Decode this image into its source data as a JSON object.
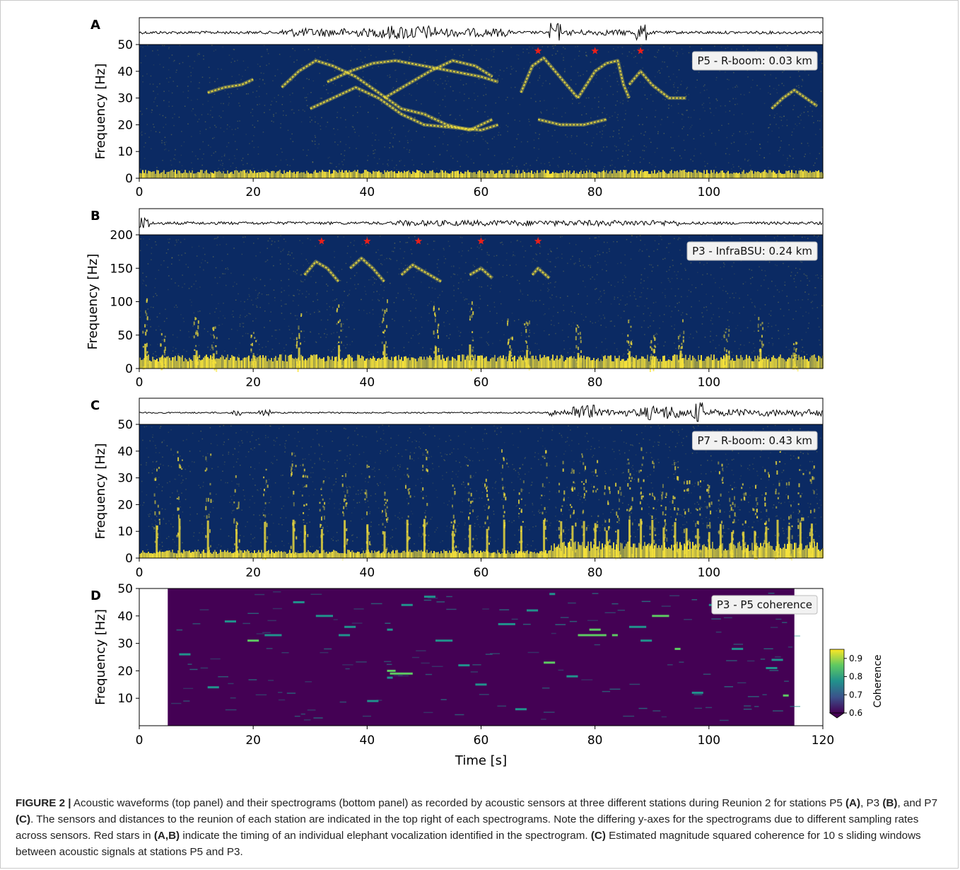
{
  "caption": {
    "label": "FIGURE 2 |",
    "parts": [
      {
        "t": " Acoustic waveforms (top panel) and their spectrograms (bottom panel) as recorded by acoustic sensors at three different stations during Reunion 2 for stations P5 ",
        "b": false
      },
      {
        "t": "(A)",
        "b": true
      },
      {
        "t": ", P3 ",
        "b": false
      },
      {
        "t": "(B)",
        "b": true
      },
      {
        "t": ", and P7 ",
        "b": false
      },
      {
        "t": "(C)",
        "b": true
      },
      {
        "t": ". The sensors and distances to the reunion of each station are indicated in the top right of each spectrograms. Note the differing y-axes for the spectrograms due to different sampling rates across sensors. Red stars in ",
        "b": false
      },
      {
        "t": "(A,B)",
        "b": true
      },
      {
        "t": " indicate the timing of an individual elephant vocalization identified in the spectrogram. ",
        "b": false
      },
      {
        "t": "(C)",
        "b": true
      },
      {
        "t": " Estimated magnitude squared coherence for 10 s sliding windows between acoustic signals at stations P5 and P3.",
        "b": false
      }
    ]
  },
  "colors": {
    "spectrogram_bg": "#0b2a63",
    "energy": "#f6e23a",
    "coherence_bg": "#440154",
    "coherence_mid": "#21918c",
    "coherence_high": "#5ec962",
    "star": "#e8201a",
    "waveform": "#000000"
  },
  "chart_data": [
    {
      "panel": "A",
      "type": "heatmap",
      "subtype": "waveform + spectrogram",
      "label": "P5 - R-boom: 0.03 km",
      "ylabel": "Frequency [Hz]",
      "xlim": [
        0,
        120
      ],
      "ylim": [
        0,
        50
      ],
      "xticks": [
        0,
        20,
        40,
        60,
        80,
        100
      ],
      "yticks": [
        0,
        10,
        20,
        30,
        40,
        50
      ],
      "star_times": [
        70,
        80,
        88
      ],
      "calls": [
        {
          "points": [
            [
              12,
              32
            ],
            [
              15,
              34
            ],
            [
              18,
              35
            ],
            [
              20,
              37
            ]
          ]
        },
        {
          "points": [
            [
              25,
              34
            ],
            [
              28,
              40
            ],
            [
              31,
              44
            ],
            [
              34,
              42
            ],
            [
              38,
              38
            ],
            [
              42,
              32
            ],
            [
              46,
              26
            ],
            [
              50,
              24
            ],
            [
              54,
              20
            ],
            [
              58,
              18
            ],
            [
              62,
              22
            ]
          ]
        },
        {
          "points": [
            [
              30,
              26
            ],
            [
              34,
              30
            ],
            [
              38,
              34
            ],
            [
              42,
              30
            ],
            [
              46,
              24
            ],
            [
              50,
              20
            ],
            [
              55,
              19
            ],
            [
              60,
              18
            ],
            [
              63,
              20
            ]
          ]
        },
        {
          "points": [
            [
              33,
              36
            ],
            [
              37,
              40
            ],
            [
              41,
              43
            ],
            [
              45,
              44
            ],
            [
              50,
              42
            ],
            [
              55,
              40
            ],
            [
              60,
              38
            ],
            [
              63,
              36
            ]
          ]
        },
        {
          "points": [
            [
              43,
              30
            ],
            [
              47,
              35
            ],
            [
              51,
              40
            ],
            [
              55,
              44
            ],
            [
              59,
              42
            ],
            [
              62,
              38
            ]
          ]
        },
        {
          "points": [
            [
              67,
              32
            ],
            [
              69,
              42
            ],
            [
              71,
              45
            ],
            [
              73,
              40
            ],
            [
              75,
              35
            ],
            [
              77,
              30
            ]
          ]
        },
        {
          "points": [
            [
              77,
              30
            ],
            [
              80,
              40
            ],
            [
              82,
              43
            ],
            [
              84,
              44
            ],
            [
              85,
              35
            ],
            [
              86,
              30
            ]
          ]
        },
        {
          "points": [
            [
              86,
              35
            ],
            [
              88,
              40
            ],
            [
              90,
              35
            ],
            [
              93,
              30
            ],
            [
              96,
              30
            ]
          ]
        },
        {
          "points": [
            [
              70,
              22
            ],
            [
              74,
              20
            ],
            [
              78,
              20
            ],
            [
              82,
              22
            ]
          ]
        },
        {
          "points": [
            [
              111,
              26
            ],
            [
              113,
              30
            ],
            [
              115,
              33
            ],
            [
              117,
              30
            ],
            [
              119,
              27
            ]
          ]
        }
      ],
      "burst_times": []
    },
    {
      "panel": "B",
      "type": "heatmap",
      "subtype": "waveform + spectrogram",
      "label": "P3 - InfraBSU: 0.24 km",
      "ylabel": "Frequency [Hz]",
      "xlim": [
        0,
        120
      ],
      "ylim": [
        0,
        200
      ],
      "xticks": [
        0,
        20,
        40,
        60,
        80,
        100
      ],
      "yticks": [
        0,
        50,
        100,
        150,
        200
      ],
      "star_times": [
        32,
        40,
        49,
        60,
        70
      ],
      "calls": [
        {
          "points": [
            [
              29,
              140
            ],
            [
              31,
              160
            ],
            [
              33,
              150
            ],
            [
              35,
              130
            ]
          ]
        },
        {
          "points": [
            [
              37,
              150
            ],
            [
              39,
              165
            ],
            [
              41,
              150
            ],
            [
              43,
              130
            ]
          ]
        },
        {
          "points": [
            [
              46,
              140
            ],
            [
              48,
              155
            ],
            [
              50,
              145
            ],
            [
              53,
              130
            ]
          ]
        },
        {
          "points": [
            [
              58,
              140
            ],
            [
              60,
              150
            ],
            [
              62,
              135
            ]
          ]
        },
        {
          "points": [
            [
              69,
              140
            ],
            [
              70,
              150
            ],
            [
              72,
              135
            ]
          ]
        }
      ],
      "burst_times": [
        1,
        4,
        10,
        13,
        20,
        28,
        35,
        43,
        52,
        58,
        65,
        68,
        77,
        86,
        90,
        95,
        103,
        109,
        115
      ]
    },
    {
      "panel": "C",
      "type": "heatmap",
      "subtype": "waveform + spectrogram",
      "label": "P7 - R-boom: 0.43 km",
      "ylabel": "Frequency [Hz]",
      "xlim": [
        0,
        120
      ],
      "ylim": [
        0,
        50
      ],
      "xticks": [
        0,
        20,
        40,
        60,
        80,
        100
      ],
      "yticks": [
        0,
        10,
        20,
        30,
        40,
        50
      ],
      "star_times": [],
      "calls": [],
      "burst_times": [
        3,
        7,
        12,
        17,
        22,
        27,
        29,
        32,
        36,
        40,
        43,
        47,
        50,
        55,
        58,
        61,
        64,
        67,
        71,
        74,
        76,
        78,
        80,
        82,
        84,
        86,
        88,
        90,
        92,
        94,
        96,
        98,
        100,
        102,
        104,
        106,
        108,
        110,
        112,
        114,
        116,
        118
      ]
    },
    {
      "panel": "D",
      "type": "heatmap",
      "subtype": "coherence",
      "label": "P3 - P5 coherence",
      "ylabel": "Frequency [Hz]",
      "xlabel": "Time [s]",
      "xlim": [
        0,
        120
      ],
      "ylim": [
        0,
        50
      ],
      "data_range": [
        5,
        115
      ],
      "xticks": [
        0,
        20,
        40,
        60,
        80,
        100,
        120
      ],
      "yticks": [
        10,
        20,
        30,
        40,
        50
      ],
      "colorbar": {
        "label": "Coherence",
        "ticks": [
          0.6,
          0.7,
          0.8,
          0.9
        ],
        "range": [
          0.6,
          0.95
        ]
      },
      "segments": [
        {
          "t": [
            7,
            9
          ],
          "f": 26,
          "c": 0.8
        },
        {
          "t": [
            19,
            21
          ],
          "f": 31,
          "c": 0.9
        },
        {
          "t": [
            22,
            25
          ],
          "f": 33,
          "c": 0.7
        },
        {
          "t": [
            31,
            34
          ],
          "f": 40,
          "c": 0.7
        },
        {
          "t": [
            36,
            38
          ],
          "f": 36,
          "c": 0.7
        },
        {
          "t": [
            43.5,
            44.5
          ],
          "f": 35,
          "c": 0.8
        },
        {
          "t": [
            44,
            48
          ],
          "f": 19,
          "c": 0.95
        },
        {
          "t": [
            43.5,
            45
          ],
          "f": 20,
          "c": 0.9
        },
        {
          "t": [
            43.5,
            44.5
          ],
          "f": 17.5,
          "c": 0.8
        },
        {
          "t": [
            46,
            48
          ],
          "f": 44,
          "c": 0.8
        },
        {
          "t": [
            35,
            37
          ],
          "f": 33,
          "c": 0.75
        },
        {
          "t": [
            40,
            42
          ],
          "f": 9,
          "c": 0.75
        },
        {
          "t": [
            52,
            55
          ],
          "f": 31,
          "c": 0.7
        },
        {
          "t": [
            59,
            61
          ],
          "f": 15,
          "c": 0.7
        },
        {
          "t": [
            63,
            66
          ],
          "f": 37,
          "c": 0.7
        },
        {
          "t": [
            68,
            70
          ],
          "f": 42,
          "c": 0.8
        },
        {
          "t": [
            71,
            73
          ],
          "f": 23,
          "c": 0.9
        },
        {
          "t": [
            72,
            73
          ],
          "f": 48,
          "c": 0.75
        },
        {
          "t": [
            77,
            82
          ],
          "f": 33,
          "c": 0.95
        },
        {
          "t": [
            79,
            81
          ],
          "f": 35,
          "c": 0.95
        },
        {
          "t": [
            83,
            84
          ],
          "f": 33,
          "c": 0.95
        },
        {
          "t": [
            86,
            89
          ],
          "f": 36,
          "c": 0.8
        },
        {
          "t": [
            90,
            93
          ],
          "f": 40,
          "c": 0.95
        },
        {
          "t": [
            94,
            95
          ],
          "f": 28,
          "c": 0.95
        },
        {
          "t": [
            100,
            103
          ],
          "f": 44,
          "c": 0.75
        },
        {
          "t": [
            110,
            112
          ],
          "f": 21,
          "c": 0.8
        },
        {
          "t": [
            113,
            114
          ],
          "f": 11,
          "c": 0.9
        },
        {
          "t": [
            111,
            113
          ],
          "f": 24,
          "c": 0.75
        },
        {
          "t": [
            12,
            14
          ],
          "f": 14,
          "c": 0.7
        },
        {
          "t": [
            27,
            29
          ],
          "f": 45,
          "c": 0.7
        },
        {
          "t": [
            56,
            58
          ],
          "f": 22,
          "c": 0.7
        },
        {
          "t": [
            66,
            68
          ],
          "f": 6,
          "c": 0.75
        },
        {
          "t": [
            88,
            90
          ],
          "f": 31,
          "c": 0.75
        },
        {
          "t": [
            97,
            99
          ],
          "f": 12,
          "c": 0.75
        },
        {
          "t": [
            104,
            106
          ],
          "f": 28,
          "c": 0.7
        },
        {
          "t": [
            15,
            17
          ],
          "f": 38,
          "c": 0.7
        },
        {
          "t": [
            50,
            52
          ],
          "f": 47,
          "c": 0.7
        },
        {
          "t": [
            75,
            77
          ],
          "f": 18,
          "c": 0.7
        }
      ]
    }
  ]
}
